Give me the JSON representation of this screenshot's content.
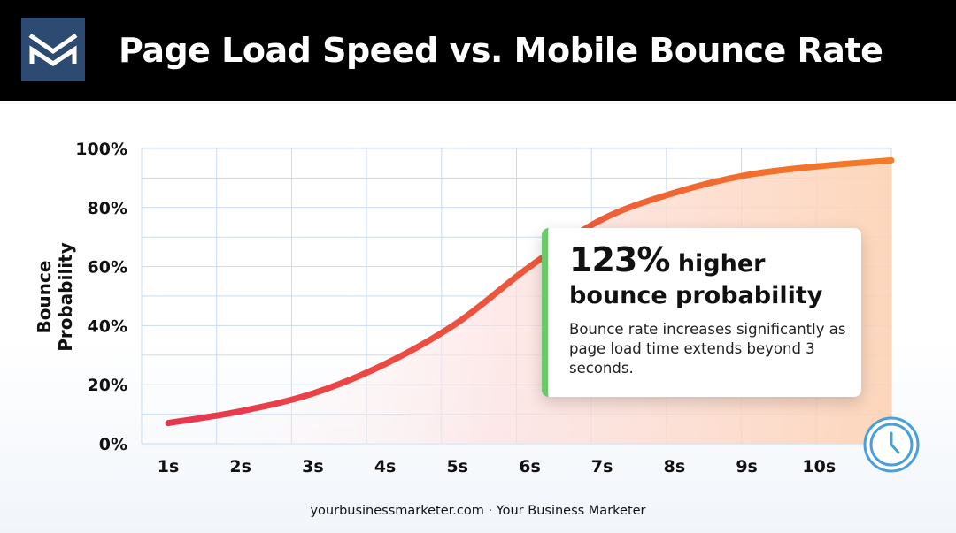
{
  "header": {
    "title": "Page Load Speed vs. Mobile Bounce Rate"
  },
  "callout": {
    "percent": "123%",
    "headline_rest": "higher",
    "headline_line2": "bounce probability",
    "body": "Bounce rate increases significantly as page load time extends beyond 3 seconds."
  },
  "footer": {
    "text": "yourbusinessmarketer.com · Your Business Marketer"
  },
  "colors": {
    "header_bg": "#000000",
    "logo_bg": "#2d4a73",
    "curve_start": "#e8344f",
    "curve_end": "#f47c26",
    "grid": "#c9dcf0",
    "callout_accent": "#6cc96a",
    "clock": "#4a9fd8"
  },
  "icons": {
    "logo": "m-logo-icon",
    "clock": "clock-icon"
  },
  "chart_data": {
    "type": "line",
    "title": "Page Load Speed vs. Mobile Bounce Rate",
    "xlabel": "",
    "ylabel": "Bounce Probability",
    "x_tick_labels": [
      "1s",
      "2s",
      "3s",
      "4s",
      "5s",
      "6s",
      "7s",
      "8s",
      "9s",
      "10s"
    ],
    "y_tick_labels": [
      "0%",
      "20%",
      "40%",
      "60%",
      "80%",
      "100%"
    ],
    "xlim": [
      1,
      11
    ],
    "ylim": [
      0,
      100
    ],
    "grid": true,
    "series": [
      {
        "x": [
          1,
          2,
          3,
          4,
          5,
          6,
          7,
          8,
          9,
          10,
          11
        ],
        "values": [
          7,
          11,
          17,
          27,
          41,
          60,
          76,
          85,
          91,
          94,
          96
        ]
      }
    ]
  }
}
